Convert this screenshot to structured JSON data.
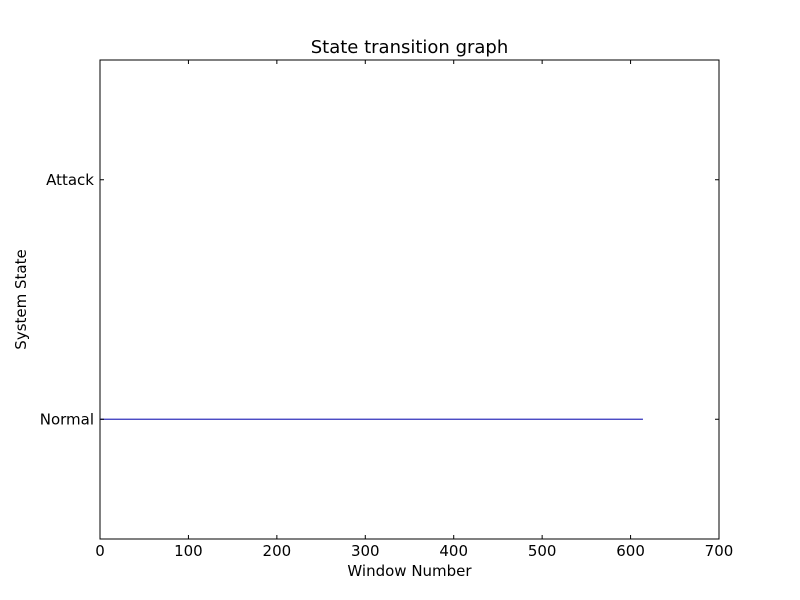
{
  "chart_data": {
    "type": "line",
    "title": "State transition graph",
    "xlabel": "Window Number",
    "ylabel": "System State",
    "xlim": [
      0,
      700
    ],
    "x_ticks": [
      0,
      100,
      200,
      300,
      400,
      500,
      600,
      700
    ],
    "ylim": [
      -0.5,
      1.5
    ],
    "y_categories": [
      "Normal",
      "Attack"
    ],
    "y_ticks": [
      0,
      1
    ],
    "grid": false,
    "series": [
      {
        "x": [
          0,
          614
        ],
        "y": [
          0,
          0
        ],
        "color": "#3333bb"
      }
    ]
  }
}
